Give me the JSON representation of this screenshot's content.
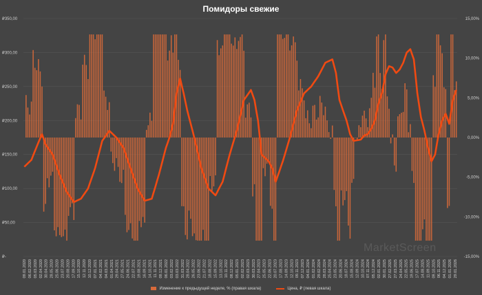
{
  "chart_data": {
    "type": "bar+line",
    "title": "Помидоры свежие",
    "left_axis": {
      "ticks": [
        "₽350,00",
        "₽300,00",
        "₽250,00",
        "₽200,00",
        "₽150,00",
        "₽100,00",
        "₽50,00",
        "₽-"
      ],
      "range": [
        0,
        350
      ]
    },
    "right_axis": {
      "ticks": [
        "15,00%",
        "10,00%",
        "5,00%",
        "0,00%",
        "-5,00%",
        "-10,00%",
        "-15,00%"
      ],
      "range": [
        -15,
        15
      ]
    },
    "x_labels": [
      "09.01.2020",
      "06.02.2020",
      "05.03.2020",
      "02.04.2020",
      "30.04.2020",
      "28.05.2020",
      "25.06.2020",
      "23.07.2020",
      "20.08.2020",
      "17.09.2020",
      "15.10.2020",
      "12.11.2020",
      "10.12.2020",
      "07.01.2021",
      "04.02.2021",
      "04.03.2021",
      "01.04.2021",
      "29.04.2021",
      "27.05.2021",
      "24.06.2021",
      "22.07.2021",
      "19.08.2021",
      "16.09.2021",
      "14.10.2021",
      "11.11.2021",
      "09.12.2021",
      "06.01.2022",
      "03.02.2022",
      "03.03.2022",
      "31.03.2022",
      "28.04.2022",
      "26.05.2022",
      "23.06.2022",
      "21.07.2022",
      "18.08.2022",
      "15.09.2022",
      "13.10.2022",
      "10.11.2022",
      "08.12.2022",
      "05.01.2023",
      "02.02.2023",
      "02.03.2023",
      "30.03.2023",
      "27.04.2023",
      "25.05.2023",
      "22.06.2023",
      "20.07.2023",
      "17.08.2023",
      "14.09.2023",
      "12.10.2023",
      "09.11.2023",
      "07.12.2023",
      "04.01.2024",
      "01.02.2024",
      "29.02.2024",
      "28.03.2024",
      "25.04.2024",
      "23.05.2024",
      "20.06.2024",
      "18.07.2024",
      "15.08.2024",
      "12.09.2024",
      "10.10.2024",
      "07.11.2024",
      "05.12.2024",
      "02.01.2025",
      "30.01.2025",
      "27.02.2025",
      "27.03.2025",
      "24.04.2025",
      "22.05.2025",
      "19.06.2025",
      "17.07.2025",
      "14.08.2025",
      "11.09.2025",
      "09.10.2025",
      "06.11.2025",
      "04.12.2025",
      "01.01.2026",
      "29.01.2026"
    ],
    "price_series": {
      "name": "Цена, ₽ (левая шкала)",
      "points": [
        [
          0,
          132
        ],
        [
          4,
          142
        ],
        [
          8,
          168
        ],
        [
          10,
          180
        ],
        [
          12,
          165
        ],
        [
          16,
          150
        ],
        [
          20,
          120
        ],
        [
          24,
          95
        ],
        [
          28,
          80
        ],
        [
          32,
          85
        ],
        [
          36,
          100
        ],
        [
          40,
          130
        ],
        [
          44,
          170
        ],
        [
          48,
          185
        ],
        [
          52,
          175
        ],
        [
          56,
          160
        ],
        [
          60,
          130
        ],
        [
          64,
          100
        ],
        [
          68,
          82
        ],
        [
          72,
          85
        ],
        [
          76,
          120
        ],
        [
          80,
          160
        ],
        [
          82,
          175
        ],
        [
          84,
          195
        ],
        [
          86,
          240
        ],
        [
          88,
          262
        ],
        [
          90,
          240
        ],
        [
          92,
          215
        ],
        [
          96,
          175
        ],
        [
          100,
          130
        ],
        [
          104,
          100
        ],
        [
          108,
          90
        ],
        [
          112,
          110
        ],
        [
          116,
          150
        ],
        [
          120,
          185
        ],
        [
          124,
          230
        ],
        [
          128,
          245
        ],
        [
          130,
          230
        ],
        [
          132,
          200
        ],
        [
          134,
          150
        ],
        [
          138,
          140
        ],
        [
          140,
          130
        ],
        [
          142,
          110
        ],
        [
          146,
          140
        ],
        [
          150,
          175
        ],
        [
          154,
          215
        ],
        [
          158,
          240
        ],
        [
          162,
          250
        ],
        [
          166,
          265
        ],
        [
          170,
          285
        ],
        [
          174,
          290
        ],
        [
          176,
          270
        ],
        [
          178,
          230
        ],
        [
          182,
          200
        ],
        [
          184,
          180
        ],
        [
          186,
          170
        ],
        [
          190,
          172
        ],
        [
          192,
          178
        ],
        [
          194,
          180
        ],
        [
          196,
          188
        ],
        [
          198,
          200
        ],
        [
          200,
          225
        ],
        [
          202,
          240
        ],
        [
          204,
          268
        ],
        [
          206,
          280
        ],
        [
          208,
          278
        ],
        [
          210,
          270
        ],
        [
          212,
          275
        ],
        [
          214,
          285
        ],
        [
          216,
          300
        ],
        [
          218,
          305
        ],
        [
          220,
          290
        ],
        [
          222,
          240
        ],
        [
          224,
          205
        ],
        [
          226,
          185
        ],
        [
          228,
          160
        ],
        [
          230,
          140
        ],
        [
          232,
          150
        ],
        [
          234,
          180
        ],
        [
          236,
          200
        ],
        [
          238,
          210
        ],
        [
          240,
          195
        ],
        [
          242,
          230
        ],
        [
          244,
          245
        ]
      ]
    },
    "weekly_change_series": {
      "name": "Изменение к предыдущей неделе, % (правая шкала)"
    },
    "watermark": "MarketScreen"
  }
}
